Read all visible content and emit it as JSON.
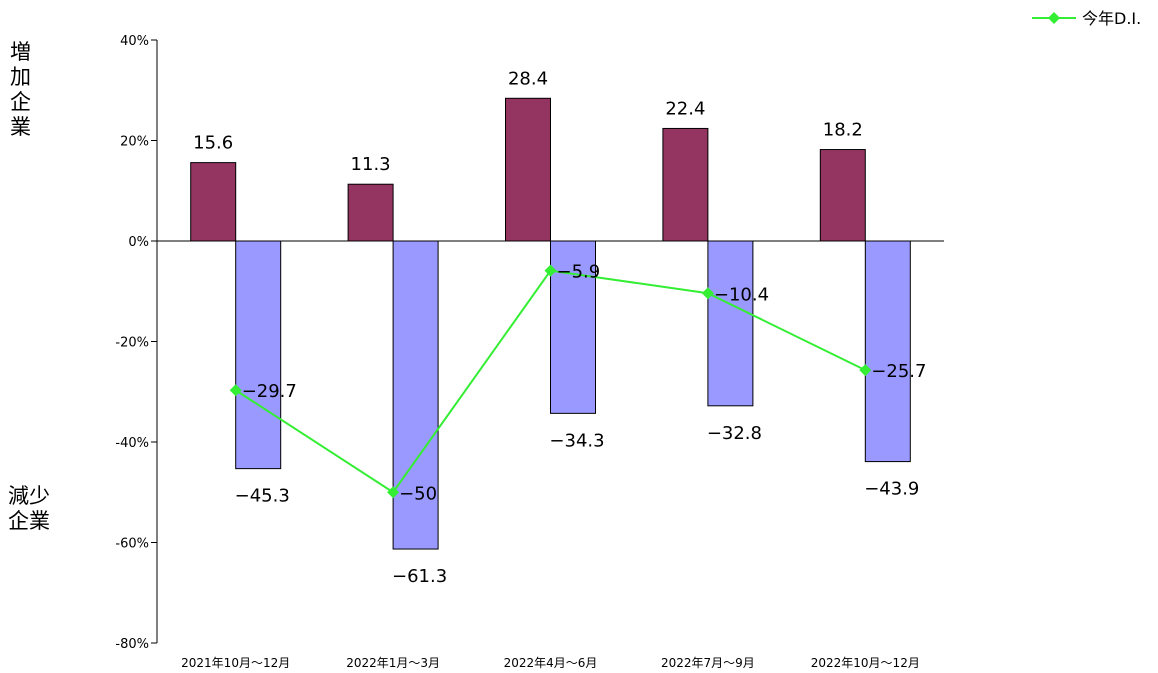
{
  "chart_data": {
    "type": "bar",
    "categories": [
      "2021年10月～12月",
      "2022年1月～3月",
      "2022年4月～6月",
      "2022年7月～9月",
      "2022年10月～12月"
    ],
    "series": [
      {
        "type": "bar",
        "values": [
          15.6,
          11.3,
          28.4,
          22.4,
          18.2
        ],
        "labels": [
          "15.6",
          "11.3",
          "28.4",
          "22.4",
          "18.2"
        ],
        "color": "#943460"
      },
      {
        "type": "bar",
        "values": [
          -45.3,
          -61.3,
          -34.3,
          -32.8,
          -43.9
        ],
        "labels": [
          "−45.3",
          "−61.3",
          "−34.3",
          "−32.8",
          "−43.9"
        ],
        "color": "#9999ff"
      },
      {
        "name": "今年D.I.",
        "type": "line",
        "values": [
          -29.7,
          -50,
          -5.9,
          -10.4,
          -25.7
        ],
        "labels": [
          "−29.7",
          "−50",
          "−5.9",
          "−10.4",
          "−25.7"
        ],
        "color": "#33ee33",
        "marker": "diamond"
      }
    ],
    "ylim": [
      -80,
      40
    ],
    "yticks": [
      40,
      20,
      0,
      -20,
      -40,
      -60,
      -80
    ],
    "ytick_labels": [
      "40%",
      "20%",
      "0%",
      "-20%",
      "-40%",
      "-60%",
      "-80%"
    ],
    "legend_position": "top-right",
    "grid": false
  },
  "side_labels": {
    "increase": "増加企業",
    "decrease": "減少企業"
  }
}
